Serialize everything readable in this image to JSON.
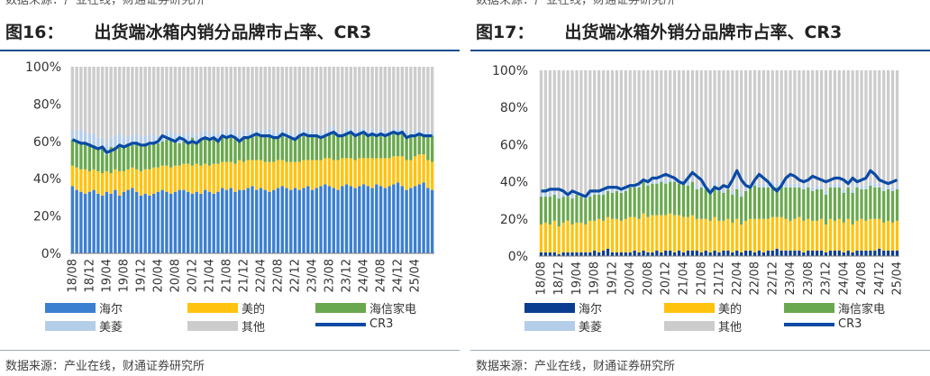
{
  "header_source": "数据来源：产业在线，财通证券研究所",
  "footer_source": "数据来源：产业在线，财通证券研究所",
  "colors": {
    "haier": "#3b7fd0",
    "midea": "#ffc20e",
    "hisense": "#6aa84f",
    "meiling": "#b4cde9",
    "other": "#cccccc",
    "cr3": "#0a4aa5",
    "haier_dark": "#0a3d8f"
  },
  "chart_data": [
    {
      "type": "bar",
      "stacked": true,
      "figure_label": "图16：",
      "title": "出货端冰箱内销分品牌市占率、CR3",
      "ylim": [
        0,
        100
      ],
      "y_ticks": [
        "0%",
        "20%",
        "40%",
        "60%",
        "80%",
        "100%"
      ],
      "x_ticks": [
        "18/08",
        "18/12",
        "19/04",
        "19/08",
        "19/12",
        "20/04",
        "20/08",
        "20/12",
        "21/04",
        "21/08",
        "21/12",
        "22/04",
        "22/08",
        "22/12",
        "23/04",
        "23/08",
        "23/12",
        "24/04",
        "24/08",
        "24/12",
        "25/04"
      ],
      "months": 85,
      "series": [
        {
          "name": "海尔",
          "key": "haier",
          "values": [
            36,
            34,
            33,
            32,
            33,
            34,
            32,
            31,
            33,
            32,
            34,
            31,
            33,
            34,
            35,
            33,
            31,
            32,
            31,
            32,
            33,
            34,
            33,
            32,
            33,
            34,
            34,
            33,
            32,
            33,
            32,
            34,
            33,
            32,
            33,
            35,
            34,
            35,
            33,
            34,
            34,
            35,
            36,
            34,
            35,
            34,
            33,
            34,
            35,
            36,
            35,
            34,
            35,
            34,
            35,
            36,
            34,
            35,
            36,
            37,
            36,
            35,
            34,
            36,
            37,
            36,
            35,
            36,
            37,
            36,
            35,
            37,
            36,
            35,
            36,
            37,
            38,
            36,
            34,
            35,
            36,
            37,
            38,
            35,
            34
          ]
        },
        {
          "name": "美的",
          "key": "midea",
          "values": [
            11,
            12,
            12,
            13,
            11,
            11,
            12,
            12,
            11,
            11,
            11,
            13,
            11,
            11,
            11,
            12,
            13,
            13,
            14,
            14,
            13,
            13,
            14,
            14,
            14,
            13,
            14,
            15,
            15,
            15,
            15,
            14,
            14,
            16,
            15,
            14,
            15,
            14,
            15,
            16,
            15,
            15,
            14,
            16,
            15,
            15,
            16,
            15,
            15,
            14,
            14,
            15,
            14,
            15,
            15,
            14,
            16,
            15,
            14,
            14,
            15,
            15,
            16,
            15,
            14,
            15,
            15,
            15,
            14,
            15,
            16,
            14,
            15,
            16,
            15,
            15,
            14,
            16,
            16,
            15,
            16,
            16,
            15,
            15,
            15
          ]
        },
        {
          "name": "海信家电",
          "key": "hisense",
          "values": [
            14,
            14,
            14,
            14,
            15,
            13,
            13,
            14,
            9,
            14,
            12,
            14,
            13,
            14,
            12,
            14,
            14,
            14,
            13,
            13,
            13,
            13,
            14,
            15,
            13,
            12,
            12,
            11,
            15,
            11,
            14,
            14,
            14,
            14,
            12,
            14,
            13,
            14,
            14,
            10,
            13,
            12,
            13,
            13,
            13,
            14,
            14,
            13,
            12,
            14,
            13,
            13,
            12,
            14,
            13,
            13,
            13,
            13,
            12,
            12,
            13,
            15,
            13,
            12,
            13,
            14,
            13,
            13,
            14,
            12,
            13,
            12,
            13,
            12,
            13,
            13,
            12,
            13,
            12,
            13,
            11,
            11,
            10,
            13,
            14
          ]
        },
        {
          "name": "美菱",
          "key": "meiling",
          "values": [
            5,
            6,
            7,
            6,
            5,
            6,
            5,
            5,
            6,
            5,
            6,
            6,
            5,
            4,
            5,
            5,
            5,
            4,
            5,
            5,
            4,
            4,
            5,
            4,
            4,
            5,
            4,
            4,
            3,
            4,
            4,
            4,
            3,
            3,
            4,
            3,
            3,
            4,
            3,
            3,
            4,
            3,
            3,
            3,
            3,
            3,
            4,
            3,
            3,
            3,
            3,
            3,
            2,
            3,
            3,
            3,
            3,
            2,
            3,
            2,
            3,
            3,
            2,
            2,
            3,
            2,
            2,
            3,
            2,
            2,
            3,
            2,
            3,
            2,
            2,
            2,
            3,
            2,
            3,
            2,
            3,
            2,
            2,
            2,
            2
          ]
        },
        {
          "name": "其他",
          "key": "other"
        },
        {
          "name": "CR3",
          "key": "cr3",
          "type": "line",
          "values": [
            61,
            60,
            59,
            59,
            58,
            57,
            56,
            57,
            54,
            55,
            56,
            58,
            57,
            58,
            59,
            59,
            58,
            58,
            59,
            59,
            60,
            63,
            62,
            61,
            60,
            62,
            61,
            59,
            60,
            59,
            61,
            62,
            61,
            62,
            60,
            63,
            62,
            63,
            62,
            60,
            62,
            62,
            63,
            64,
            63,
            63,
            63,
            62,
            62,
            64,
            63,
            62,
            61,
            63,
            64,
            63,
            63,
            63,
            62,
            63,
            64,
            65,
            63,
            63,
            64,
            65,
            63,
            64,
            65,
            63,
            64,
            63,
            64,
            63,
            64,
            65,
            64,
            65,
            62,
            63,
            63,
            64,
            63,
            63,
            63
          ]
        }
      ]
    },
    {
      "type": "bar",
      "stacked": true,
      "figure_label": "图17：",
      "title": "出货端冰箱外销分品牌市占率、CR3",
      "ylim": [
        0,
        100
      ],
      "y_ticks": [
        "0%",
        "20%",
        "40%",
        "60%",
        "80%",
        "100%"
      ],
      "x_ticks": [
        "18/08",
        "18/12",
        "19/04",
        "19/08",
        "19/12",
        "20/04",
        "20/08",
        "20/12",
        "21/04",
        "21/08",
        "21/12",
        "22/04",
        "22/08",
        "22/12",
        "23/04",
        "23/08",
        "23/12",
        "24/04",
        "24/08",
        "24/12",
        "25/04"
      ],
      "months": 81,
      "series": [
        {
          "name": "海尔",
          "key": "haier_dark",
          "values": [
            2,
            2,
            2,
            2,
            1,
            2,
            2,
            2,
            2,
            2,
            2,
            2,
            3,
            2,
            3,
            4,
            2,
            2,
            2,
            2,
            2,
            3,
            2,
            3,
            2,
            2,
            3,
            2,
            3,
            3,
            2,
            3,
            2,
            3,
            3,
            3,
            2,
            3,
            2,
            3,
            2,
            3,
            3,
            2,
            3,
            2,
            3,
            3,
            2,
            3,
            2,
            3,
            3,
            4,
            3,
            3,
            3,
            3,
            3,
            2,
            3,
            3,
            3,
            3,
            2,
            3,
            3,
            3,
            2,
            3,
            2,
            3,
            3,
            3,
            3,
            3,
            4,
            3,
            3,
            3,
            3
          ]
        },
        {
          "name": "美的",
          "key": "midea",
          "values": [
            15,
            16,
            15,
            17,
            15,
            16,
            17,
            15,
            16,
            16,
            15,
            17,
            16,
            18,
            16,
            17,
            18,
            18,
            17,
            18,
            19,
            18,
            18,
            20,
            19,
            20,
            19,
            20,
            19,
            20,
            20,
            19,
            19,
            18,
            19,
            17,
            18,
            17,
            17,
            18,
            17,
            16,
            17,
            16,
            17,
            15,
            16,
            17,
            18,
            17,
            18,
            17,
            18,
            17,
            18,
            17,
            16,
            17,
            18,
            17,
            17,
            16,
            16,
            17,
            15,
            17,
            16,
            17,
            16,
            17,
            15,
            16,
            17,
            16,
            17,
            17,
            16,
            15,
            16,
            15,
            16
          ]
        },
        {
          "name": "海信家电",
          "key": "hisense",
          "values": [
            15,
            14,
            15,
            14,
            15,
            14,
            13,
            14,
            15,
            14,
            14,
            13,
            14,
            13,
            14,
            14,
            14,
            15,
            15,
            15,
            16,
            16,
            17,
            17,
            17,
            17,
            17,
            18,
            17,
            17,
            18,
            17,
            18,
            17,
            18,
            16,
            17,
            16,
            16,
            17,
            16,
            15,
            16,
            15,
            16,
            15,
            16,
            17,
            18,
            17,
            17,
            17,
            17,
            16,
            17,
            17,
            18,
            17,
            16,
            17,
            17,
            16,
            17,
            16,
            16,
            17,
            18,
            17,
            16,
            17,
            17,
            18,
            16,
            17,
            18,
            17,
            17,
            17,
            17,
            17,
            17
          ]
        },
        {
          "name": "美菱",
          "key": "meiling",
          "values": [
            2,
            2,
            2,
            2,
            2,
            2,
            2,
            2,
            2,
            2,
            2,
            2,
            2,
            2,
            2,
            2,
            2,
            2,
            2,
            2,
            2,
            2,
            2,
            2,
            2,
            2,
            2,
            2,
            2,
            2,
            2,
            2,
            2,
            2,
            2,
            2,
            2,
            2,
            2,
            2,
            2,
            2,
            2,
            2,
            2,
            2,
            2,
            2,
            2,
            2,
            2,
            2,
            2,
            2,
            2,
            2,
            2,
            2,
            2,
            2,
            2,
            2,
            2,
            2,
            2,
            2,
            2,
            2,
            2,
            2,
            2,
            2,
            2,
            2,
            2,
            2,
            2,
            2,
            2,
            2,
            2
          ]
        },
        {
          "name": "其他",
          "key": "other"
        },
        {
          "name": "CR3",
          "key": "cr3",
          "type": "line",
          "values": [
            35,
            35,
            36,
            36,
            36,
            35,
            33,
            35,
            34,
            33,
            32,
            35,
            35,
            35,
            36,
            37,
            37,
            37,
            36,
            37,
            38,
            38,
            39,
            41,
            40,
            42,
            42,
            43,
            44,
            43,
            42,
            40,
            39,
            42,
            45,
            43,
            41,
            37,
            34,
            37,
            36,
            38,
            37,
            41,
            46,
            41,
            38,
            37,
            41,
            44,
            42,
            40,
            37,
            35,
            38,
            42,
            44,
            43,
            41,
            40,
            41,
            43,
            42,
            41,
            40,
            41,
            42,
            42,
            41,
            39,
            42,
            40,
            41,
            42,
            46,
            44,
            41,
            40,
            39,
            40,
            41
          ]
        }
      ]
    }
  ]
}
